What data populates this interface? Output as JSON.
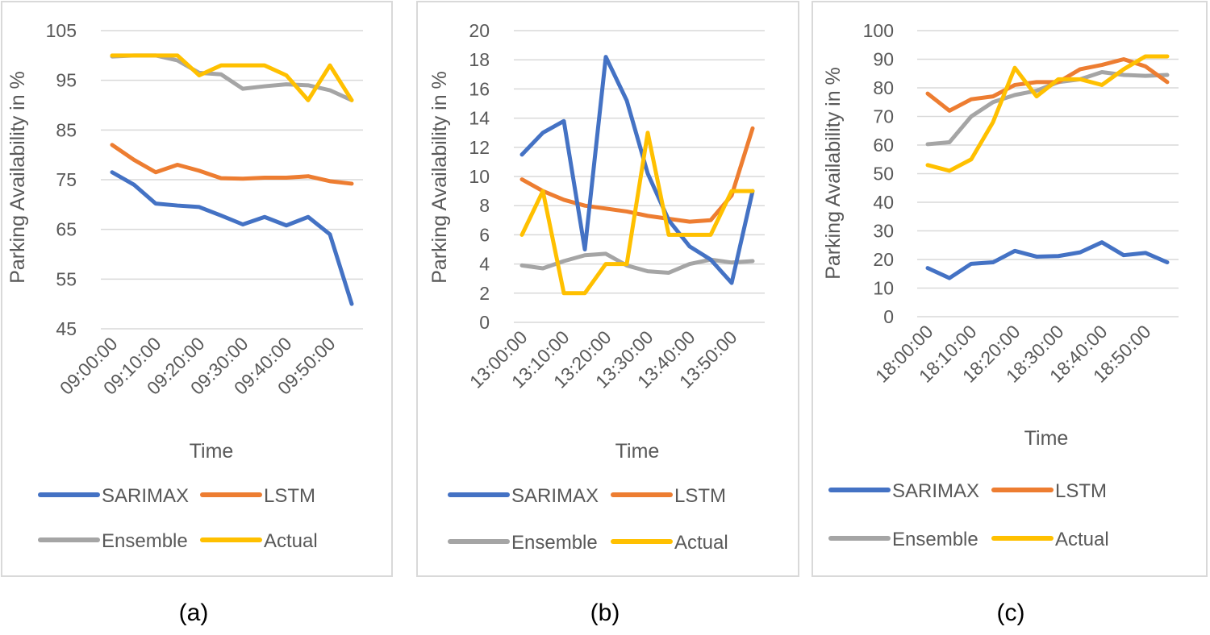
{
  "colors": {
    "SARIMAX": "#4472c4",
    "LSTM": "#ed7d31",
    "Ensemble": "#a5a5a5",
    "Actual": "#ffc000",
    "grid": "#d9d9d9",
    "frame": "#d9d9d9"
  },
  "chart_data": [
    {
      "type": "line",
      "caption": "(a)",
      "xlabel": "Time",
      "ylabel": "Parking Availability in %",
      "ylim": [
        45,
        105
      ],
      "yticks": [
        45,
        55,
        65,
        75,
        85,
        95,
        105
      ],
      "grid": true,
      "legend": "bottom",
      "x": [
        "09:00:00",
        "09:05:00",
        "09:10:00",
        "09:15:00",
        "09:20:00",
        "09:25:00",
        "09:30:00",
        "09:35:00",
        "09:40:00",
        "09:45:00",
        "09:50:00",
        "09:55:00"
      ],
      "tick_labels": [
        "09:00:00",
        "09:10:00",
        "09:20:00",
        "09:30:00",
        "09:40:00",
        "09:50:00"
      ],
      "series": [
        {
          "name": "SARIMAX",
          "values": [
            76.5,
            74,
            70.2,
            69.8,
            69.5,
            67.8,
            66,
            67.5,
            65.8,
            67.5,
            64,
            50
          ]
        },
        {
          "name": "LSTM",
          "values": [
            82,
            79,
            76.5,
            78,
            76.8,
            75.3,
            75.2,
            75.4,
            75.4,
            75.7,
            74.7,
            74.2
          ]
        },
        {
          "name": "Ensemble",
          "values": [
            99.8,
            100,
            100,
            99,
            96.5,
            96.2,
            93.3,
            93.8,
            94.2,
            94,
            93,
            91
          ]
        },
        {
          "name": "Actual",
          "values": [
            100,
            100,
            100,
            100,
            96,
            98,
            98,
            98,
            96,
            91,
            98,
            91
          ]
        }
      ]
    },
    {
      "type": "line",
      "caption": "(b)",
      "xlabel": "Time",
      "ylabel": "Parking Availability in %",
      "ylim": [
        0,
        20
      ],
      "yticks": [
        0,
        2,
        4,
        6,
        8,
        10,
        12,
        14,
        16,
        18,
        20
      ],
      "grid": true,
      "legend": "bottom",
      "x": [
        "13:00:00",
        "13:05:00",
        "13:10:00",
        "13:15:00",
        "13:20:00",
        "13:25:00",
        "13:30:00",
        "13:35:00",
        "13:40:00",
        "13:45:00",
        "13:50:00",
        "13:55:00"
      ],
      "tick_labels": [
        "13:00:00",
        "13:10:00",
        "13:20:00",
        "13:30:00",
        "13:40:00",
        "13:50:00"
      ],
      "series": [
        {
          "name": "SARIMAX",
          "values": [
            11.5,
            13,
            13.8,
            5,
            18.2,
            15.2,
            10.2,
            7,
            5.2,
            4.3,
            2.7,
            9
          ]
        },
        {
          "name": "LSTM",
          "values": [
            9.8,
            9,
            8.4,
            8,
            7.8,
            7.6,
            7.3,
            7.1,
            6.9,
            7,
            8.7,
            13.3
          ]
        },
        {
          "name": "Ensemble",
          "values": [
            3.9,
            3.7,
            4.2,
            4.6,
            4.7,
            3.9,
            3.5,
            3.4,
            4,
            4.3,
            4.1,
            4.2
          ]
        },
        {
          "name": "Actual",
          "values": [
            6,
            9,
            2,
            2,
            4,
            4,
            13,
            6,
            6,
            6,
            9,
            9
          ]
        }
      ]
    },
    {
      "type": "line",
      "caption": "(c)",
      "xlabel": "Time",
      "ylabel": "Parking Availability in %",
      "ylim": [
        0,
        100
      ],
      "yticks": [
        0,
        10,
        20,
        30,
        40,
        50,
        60,
        70,
        80,
        90,
        100
      ],
      "grid": true,
      "legend": "bottom",
      "x": [
        "18:00:00",
        "18:05:00",
        "18:10:00",
        "18:15:00",
        "18:20:00",
        "18:25:00",
        "18:30:00",
        "18:35:00",
        "18:40:00",
        "18:45:00",
        "18:50:00",
        "18:55:00"
      ],
      "tick_labels": [
        "18:00:00",
        "18:10:00",
        "18:20:00",
        "18:30:00",
        "18:40:00",
        "18:50:00"
      ],
      "series": [
        {
          "name": "SARIMAX",
          "values": [
            17,
            13.5,
            18.5,
            19,
            23,
            21,
            21.2,
            22.5,
            26,
            21.5,
            22.3,
            19
          ]
        },
        {
          "name": "LSTM",
          "values": [
            78,
            72,
            76,
            77,
            81,
            82,
            82,
            86.5,
            88,
            90,
            87.5,
            82
          ]
        },
        {
          "name": "Ensemble",
          "values": [
            60.3,
            61,
            70,
            75,
            77.5,
            79,
            82,
            83,
            85.5,
            84.5,
            84.2,
            84.5
          ]
        },
        {
          "name": "Actual",
          "values": [
            53,
            51,
            55,
            68,
            87,
            77,
            83,
            83,
            81,
            86.5,
            91,
            91
          ]
        }
      ]
    }
  ]
}
